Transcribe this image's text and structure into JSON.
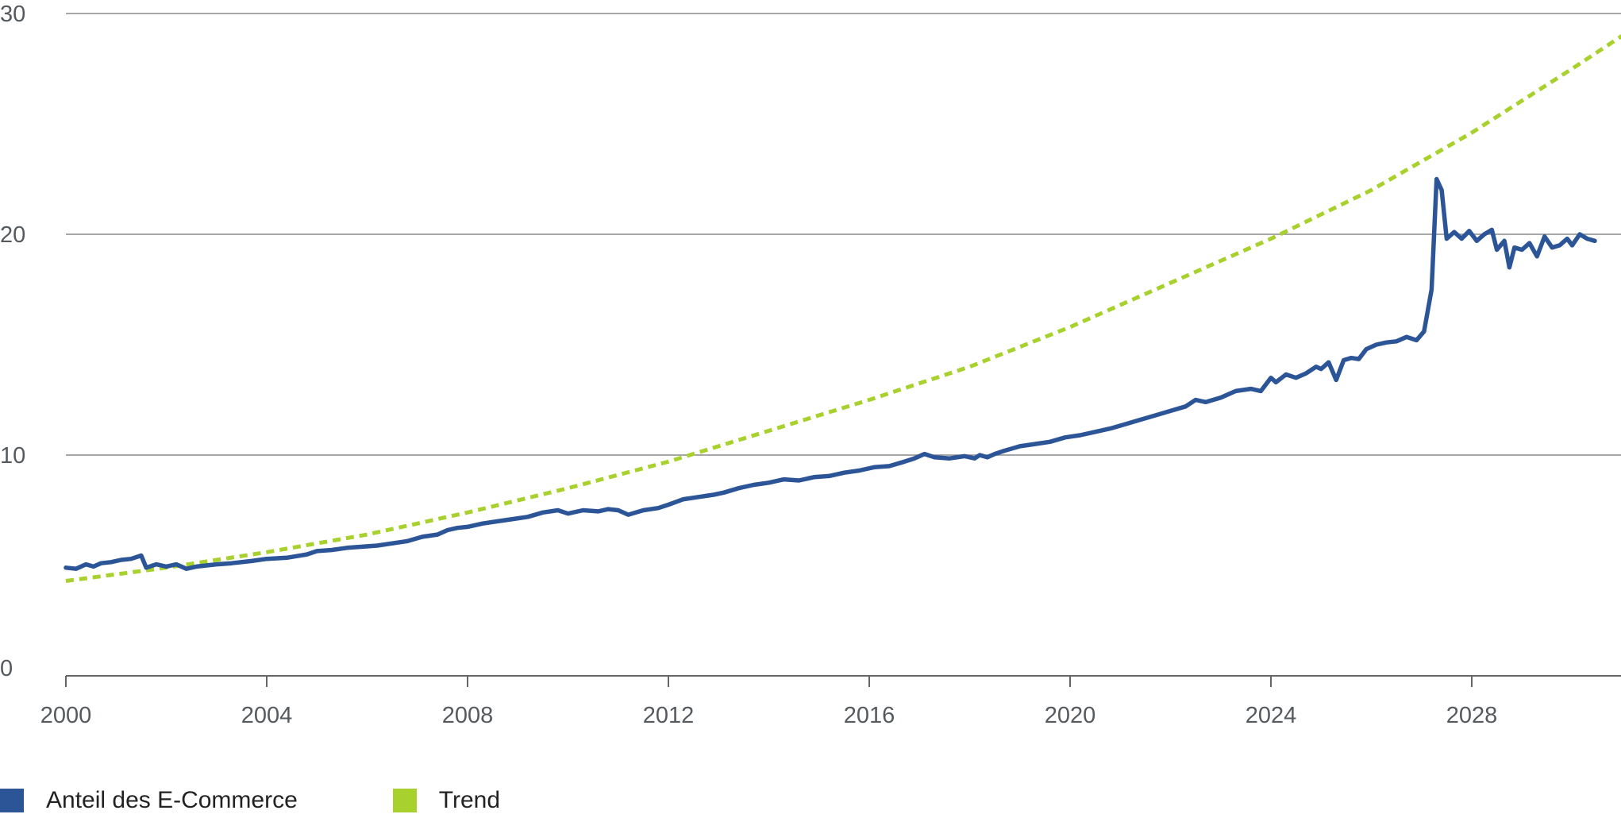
{
  "chart_data": {
    "type": "line",
    "title": "",
    "xlabel": "",
    "ylabel": "",
    "xlim": [
      2000,
      2031
    ],
    "ylim": [
      0,
      30
    ],
    "x_ticks": [
      "2000",
      "2004",
      "2008",
      "2012",
      "2016",
      "2020",
      "2024",
      "2028"
    ],
    "y_ticks": [
      "0",
      "10",
      "20",
      "30"
    ],
    "grid": "horizontal",
    "legend_position": "bottom-left",
    "colors": {
      "series": "#2c5597",
      "trend": "#a8d12e",
      "grid": "#8a8a8a",
      "axis": "#666666"
    },
    "series": [
      {
        "name": "Anteil des E-Commerce",
        "style": "solid",
        "points": [
          [
            2000.0,
            4.9
          ],
          [
            2000.2,
            4.85
          ],
          [
            2000.4,
            5.05
          ],
          [
            2000.55,
            4.95
          ],
          [
            2000.7,
            5.1
          ],
          [
            2000.9,
            5.15
          ],
          [
            2001.1,
            5.25
          ],
          [
            2001.3,
            5.3
          ],
          [
            2001.5,
            5.45
          ],
          [
            2001.6,
            4.9
          ],
          [
            2001.8,
            5.05
          ],
          [
            2002.0,
            4.95
          ],
          [
            2002.2,
            5.05
          ],
          [
            2002.4,
            4.85
          ],
          [
            2002.6,
            4.95
          ],
          [
            2002.8,
            5.0
          ],
          [
            2003.0,
            5.05
          ],
          [
            2003.3,
            5.1
          ],
          [
            2003.7,
            5.2
          ],
          [
            2004.0,
            5.3
          ],
          [
            2004.4,
            5.35
          ],
          [
            2004.8,
            5.5
          ],
          [
            2005.0,
            5.65
          ],
          [
            2005.3,
            5.7
          ],
          [
            2005.6,
            5.8
          ],
          [
            2005.9,
            5.85
          ],
          [
            2006.2,
            5.9
          ],
          [
            2006.5,
            6.0
          ],
          [
            2006.8,
            6.1
          ],
          [
            2007.1,
            6.3
          ],
          [
            2007.4,
            6.4
          ],
          [
            2007.6,
            6.6
          ],
          [
            2007.8,
            6.7
          ],
          [
            2008.0,
            6.75
          ],
          [
            2008.3,
            6.9
          ],
          [
            2008.6,
            7.0
          ],
          [
            2008.9,
            7.1
          ],
          [
            2009.2,
            7.2
          ],
          [
            2009.5,
            7.4
          ],
          [
            2009.8,
            7.5
          ],
          [
            2010.0,
            7.35
          ],
          [
            2010.3,
            7.5
          ],
          [
            2010.6,
            7.45
          ],
          [
            2010.8,
            7.55
          ],
          [
            2011.0,
            7.5
          ],
          [
            2011.2,
            7.3
          ],
          [
            2011.5,
            7.5
          ],
          [
            2011.8,
            7.6
          ],
          [
            2012.0,
            7.75
          ],
          [
            2012.3,
            8.0
          ],
          [
            2012.6,
            8.1
          ],
          [
            2012.9,
            8.2
          ],
          [
            2013.1,
            8.3
          ],
          [
            2013.4,
            8.5
          ],
          [
            2013.7,
            8.65
          ],
          [
            2014.0,
            8.75
          ],
          [
            2014.3,
            8.9
          ],
          [
            2014.6,
            8.85
          ],
          [
            2014.9,
            9.0
          ],
          [
            2015.2,
            9.05
          ],
          [
            2015.5,
            9.2
          ],
          [
            2015.8,
            9.3
          ],
          [
            2016.1,
            9.45
          ],
          [
            2016.4,
            9.5
          ],
          [
            2016.7,
            9.7
          ],
          [
            2016.9,
            9.85
          ],
          [
            2017.1,
            10.05
          ],
          [
            2017.3,
            9.9
          ],
          [
            2017.6,
            9.85
          ],
          [
            2017.9,
            9.95
          ],
          [
            2018.1,
            9.85
          ],
          [
            2018.2,
            10.0
          ],
          [
            2018.35,
            9.9
          ],
          [
            2018.5,
            10.05
          ],
          [
            2018.7,
            10.2
          ],
          [
            2019.0,
            10.4
          ],
          [
            2019.3,
            10.5
          ],
          [
            2019.6,
            10.6
          ],
          [
            2019.9,
            10.8
          ],
          [
            2020.2,
            10.9
          ],
          [
            2020.5,
            11.05
          ],
          [
            2020.8,
            11.2
          ],
          [
            2021.1,
            11.4
          ],
          [
            2021.4,
            11.6
          ],
          [
            2021.7,
            11.8
          ],
          [
            2022.0,
            12.0
          ],
          [
            2022.3,
            12.2
          ],
          [
            2022.5,
            12.5
          ],
          [
            2022.7,
            12.4
          ],
          [
            2023.0,
            12.6
          ],
          [
            2023.3,
            12.9
          ],
          [
            2023.6,
            13.0
          ],
          [
            2023.8,
            12.9
          ],
          [
            2024.0,
            13.5
          ],
          [
            2024.1,
            13.3
          ],
          [
            2024.3,
            13.65
          ],
          [
            2024.5,
            13.5
          ],
          [
            2024.7,
            13.7
          ],
          [
            2024.9,
            14.0
          ],
          [
            2025.0,
            13.9
          ],
          [
            2025.15,
            14.2
          ],
          [
            2025.3,
            13.4
          ],
          [
            2025.45,
            14.3
          ],
          [
            2025.6,
            14.4
          ],
          [
            2025.75,
            14.35
          ],
          [
            2025.9,
            14.8
          ],
          [
            2026.1,
            15.0
          ],
          [
            2026.3,
            15.1
          ],
          [
            2026.5,
            15.15
          ],
          [
            2026.7,
            15.35
          ],
          [
            2026.9,
            15.2
          ],
          [
            2027.05,
            15.6
          ],
          [
            2027.2,
            17.5
          ],
          [
            2027.3,
            22.5
          ],
          [
            2027.4,
            22.0
          ],
          [
            2027.5,
            19.8
          ],
          [
            2027.65,
            20.1
          ],
          [
            2027.8,
            19.8
          ],
          [
            2027.95,
            20.15
          ],
          [
            2028.1,
            19.7
          ],
          [
            2028.25,
            20.0
          ],
          [
            2028.4,
            20.2
          ],
          [
            2028.5,
            19.3
          ],
          [
            2028.65,
            19.7
          ],
          [
            2028.75,
            18.5
          ],
          [
            2028.85,
            19.4
          ],
          [
            2029.0,
            19.3
          ],
          [
            2029.15,
            19.6
          ],
          [
            2029.3,
            19.0
          ],
          [
            2029.45,
            19.9
          ],
          [
            2029.6,
            19.4
          ],
          [
            2029.75,
            19.5
          ],
          [
            2029.9,
            19.8
          ],
          [
            2030.0,
            19.5
          ],
          [
            2030.15,
            20.0
          ],
          [
            2030.3,
            19.8
          ],
          [
            2030.45,
            19.7
          ]
        ]
      },
      {
        "name": "Trend",
        "style": "dashed",
        "points": [
          [
            2000,
            4.3
          ],
          [
            2002,
            4.9
          ],
          [
            2004,
            5.6
          ],
          [
            2006,
            6.4
          ],
          [
            2008,
            7.4
          ],
          [
            2010,
            8.5
          ],
          [
            2012,
            9.7
          ],
          [
            2014,
            11.1
          ],
          [
            2016,
            12.5
          ],
          [
            2018,
            14.0
          ],
          [
            2020,
            15.8
          ],
          [
            2022,
            17.8
          ],
          [
            2024,
            19.8
          ],
          [
            2026,
            22.0
          ],
          [
            2028,
            24.6
          ],
          [
            2030,
            27.5
          ],
          [
            2031,
            29.0
          ]
        ]
      }
    ]
  }
}
